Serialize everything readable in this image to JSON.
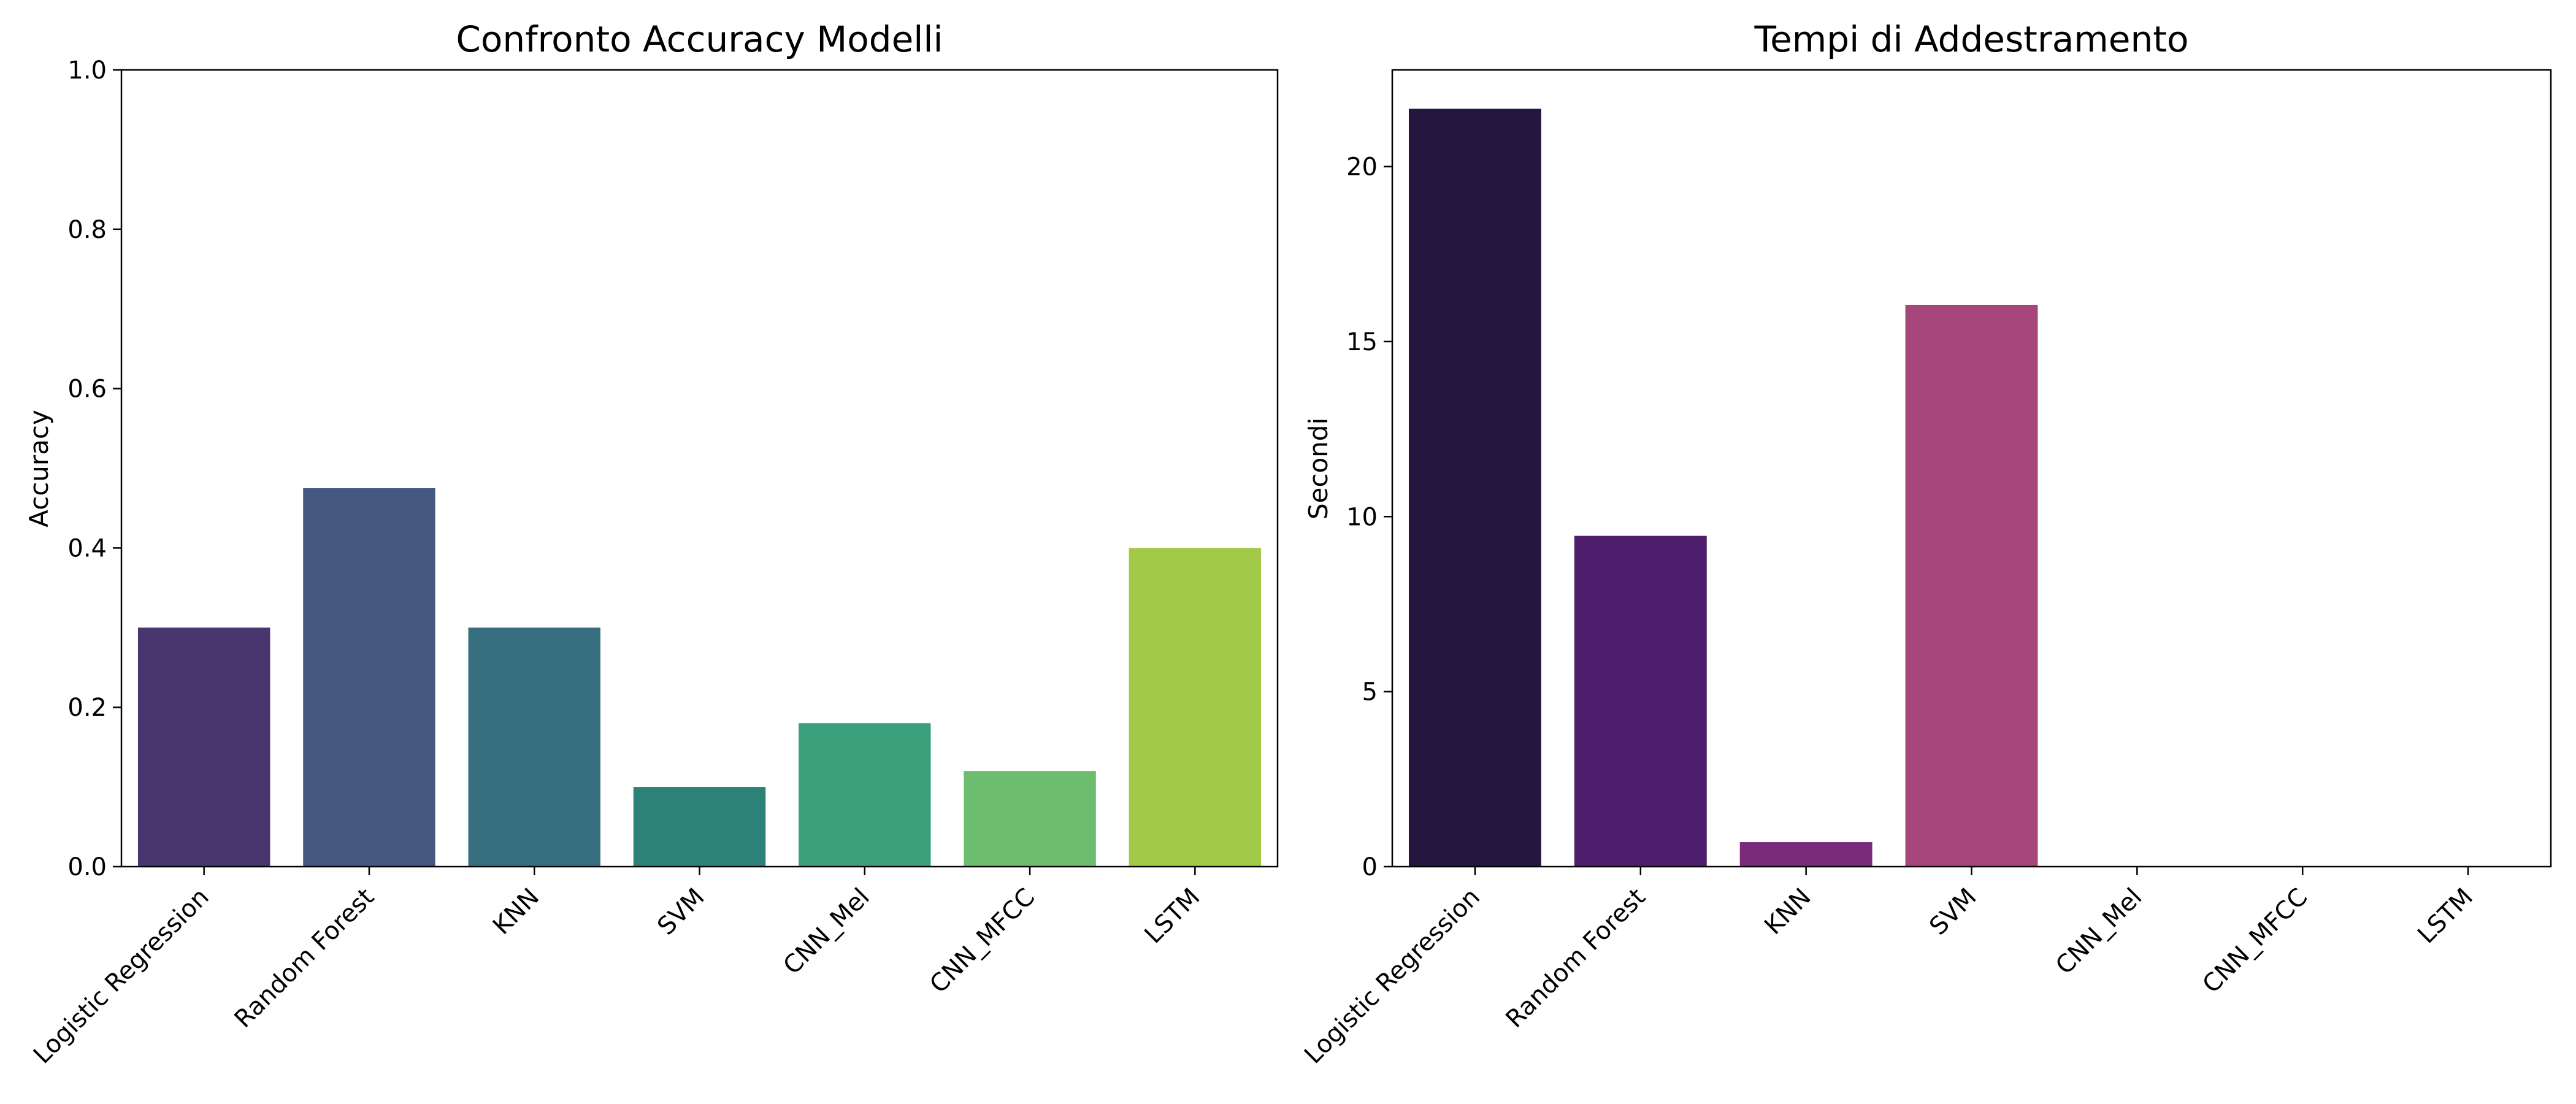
{
  "chart_data": [
    {
      "type": "bar",
      "title": "Confronto Accuracy Modelli",
      "xlabel": "",
      "ylabel": "Accuracy",
      "categories": [
        "Logistic Regression",
        "Random Forest",
        "KNN",
        "SVM",
        "CNN_Mel",
        "CNN_MFCC",
        "LSTM"
      ],
      "values": [
        0.3,
        0.475,
        0.3,
        0.1,
        0.18,
        0.12,
        0.4
      ],
      "colors": [
        "#4a366f",
        "#45587f",
        "#386f80",
        "#2d8278",
        "#3ba07c",
        "#6cbd6e",
        "#a3c948"
      ],
      "ylim": [
        0,
        1.0
      ],
      "yticks": [
        0.0,
        0.2,
        0.4,
        0.6,
        0.8,
        1.0
      ],
      "ytick_labels": [
        "0.0",
        "0.2",
        "0.4",
        "0.6",
        "0.8",
        "1.0"
      ],
      "grid": false,
      "legend": "none"
    },
    {
      "type": "bar",
      "title": "Tempi di Addestramento",
      "xlabel": "",
      "ylabel": "Secondi",
      "categories": [
        "Logistic Regression",
        "Random Forest",
        "KNN",
        "SVM",
        "CNN_Mel",
        "CNN_MFCC",
        "LSTM"
      ],
      "values": [
        21.65,
        9.45,
        0.7,
        16.05,
        0.0,
        0.0,
        0.0
      ],
      "colors": [
        "#23173f",
        "#4f1f6d",
        "#7a2c7a",
        "#a6467a",
        "#d8506a",
        "#f0805a",
        "#f6c38c"
      ],
      "ylim": [
        0,
        22.76
      ],
      "yticks": [
        0,
        5,
        10,
        15,
        20
      ],
      "ytick_labels": [
        "0",
        "5",
        "10",
        "15",
        "20"
      ],
      "grid": false,
      "legend": "none"
    }
  ]
}
